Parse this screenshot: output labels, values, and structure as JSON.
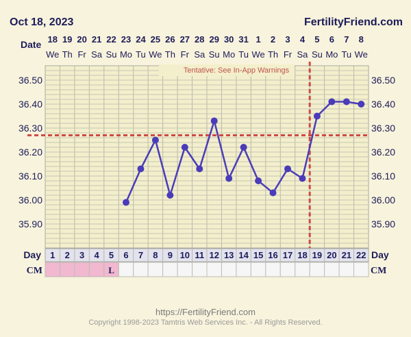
{
  "header": {
    "date": "Oct 18, 2023",
    "brand": "FertilityFriend.com",
    "date_row_label": "Date"
  },
  "warning": "Tentative: See In-App Warnings",
  "row_labels": {
    "day": "Day",
    "cm": "CM"
  },
  "cm_entries": [
    "",
    "",
    "",
    "",
    "L",
    "",
    "",
    "",
    "",
    "",
    "",
    "",
    "",
    "",
    "",
    "",
    "",
    "",
    "",
    "",
    "",
    ""
  ],
  "cm_pink_days": [
    1,
    2,
    3,
    4,
    5
  ],
  "footer": {
    "url": "https://FertilityFriend.com",
    "copyright": "Copyright 1998-2023 Tamtris Web Services Inc. - All Rights Reserved."
  },
  "colors": {
    "background": "#f8f3dc",
    "grid_bg": "#f3efcc",
    "line": "#4a3cb8",
    "coverline": "#cf4a45",
    "cm_pink": "#f1b8cf",
    "day_row": "#e3e3ee",
    "text": "#1c1b5a"
  },
  "chart_data": {
    "type": "line",
    "title": "",
    "xlabel": "Day",
    "ylabel": "",
    "cycle_days": [
      1,
      2,
      3,
      4,
      5,
      6,
      7,
      8,
      9,
      10,
      11,
      12,
      13,
      14,
      15,
      16,
      17,
      18,
      19,
      20,
      21,
      22
    ],
    "dates": [
      "18",
      "19",
      "20",
      "21",
      "22",
      "23",
      "24",
      "25",
      "26",
      "27",
      "28",
      "29",
      "30",
      "31",
      "1",
      "2",
      "3",
      "4",
      "5",
      "6",
      "7",
      "8"
    ],
    "weekdays": [
      "We",
      "Th",
      "Fr",
      "Sa",
      "Su",
      "Mo",
      "Tu",
      "We",
      "Th",
      "Fr",
      "Sa",
      "Su",
      "Mo",
      "Tu",
      "We",
      "Th",
      "Fr",
      "Sa",
      "Su",
      "Mo",
      "Tu",
      "We"
    ],
    "yticks": [
      35.9,
      36.0,
      36.1,
      36.2,
      36.3,
      36.4,
      36.5
    ],
    "ylim": [
      35.8,
      36.56
    ],
    "series": [
      {
        "values": [
          null,
          null,
          null,
          null,
          null,
          35.99,
          36.13,
          36.25,
          36.02,
          36.22,
          36.13,
          36.33,
          36.09,
          36.22,
          36.08,
          36.03,
          36.13,
          36.09,
          36.35,
          36.41,
          36.41,
          36.4
        ]
      }
    ],
    "coverline": 36.27,
    "ovulation_day": 18,
    "grid": true
  }
}
